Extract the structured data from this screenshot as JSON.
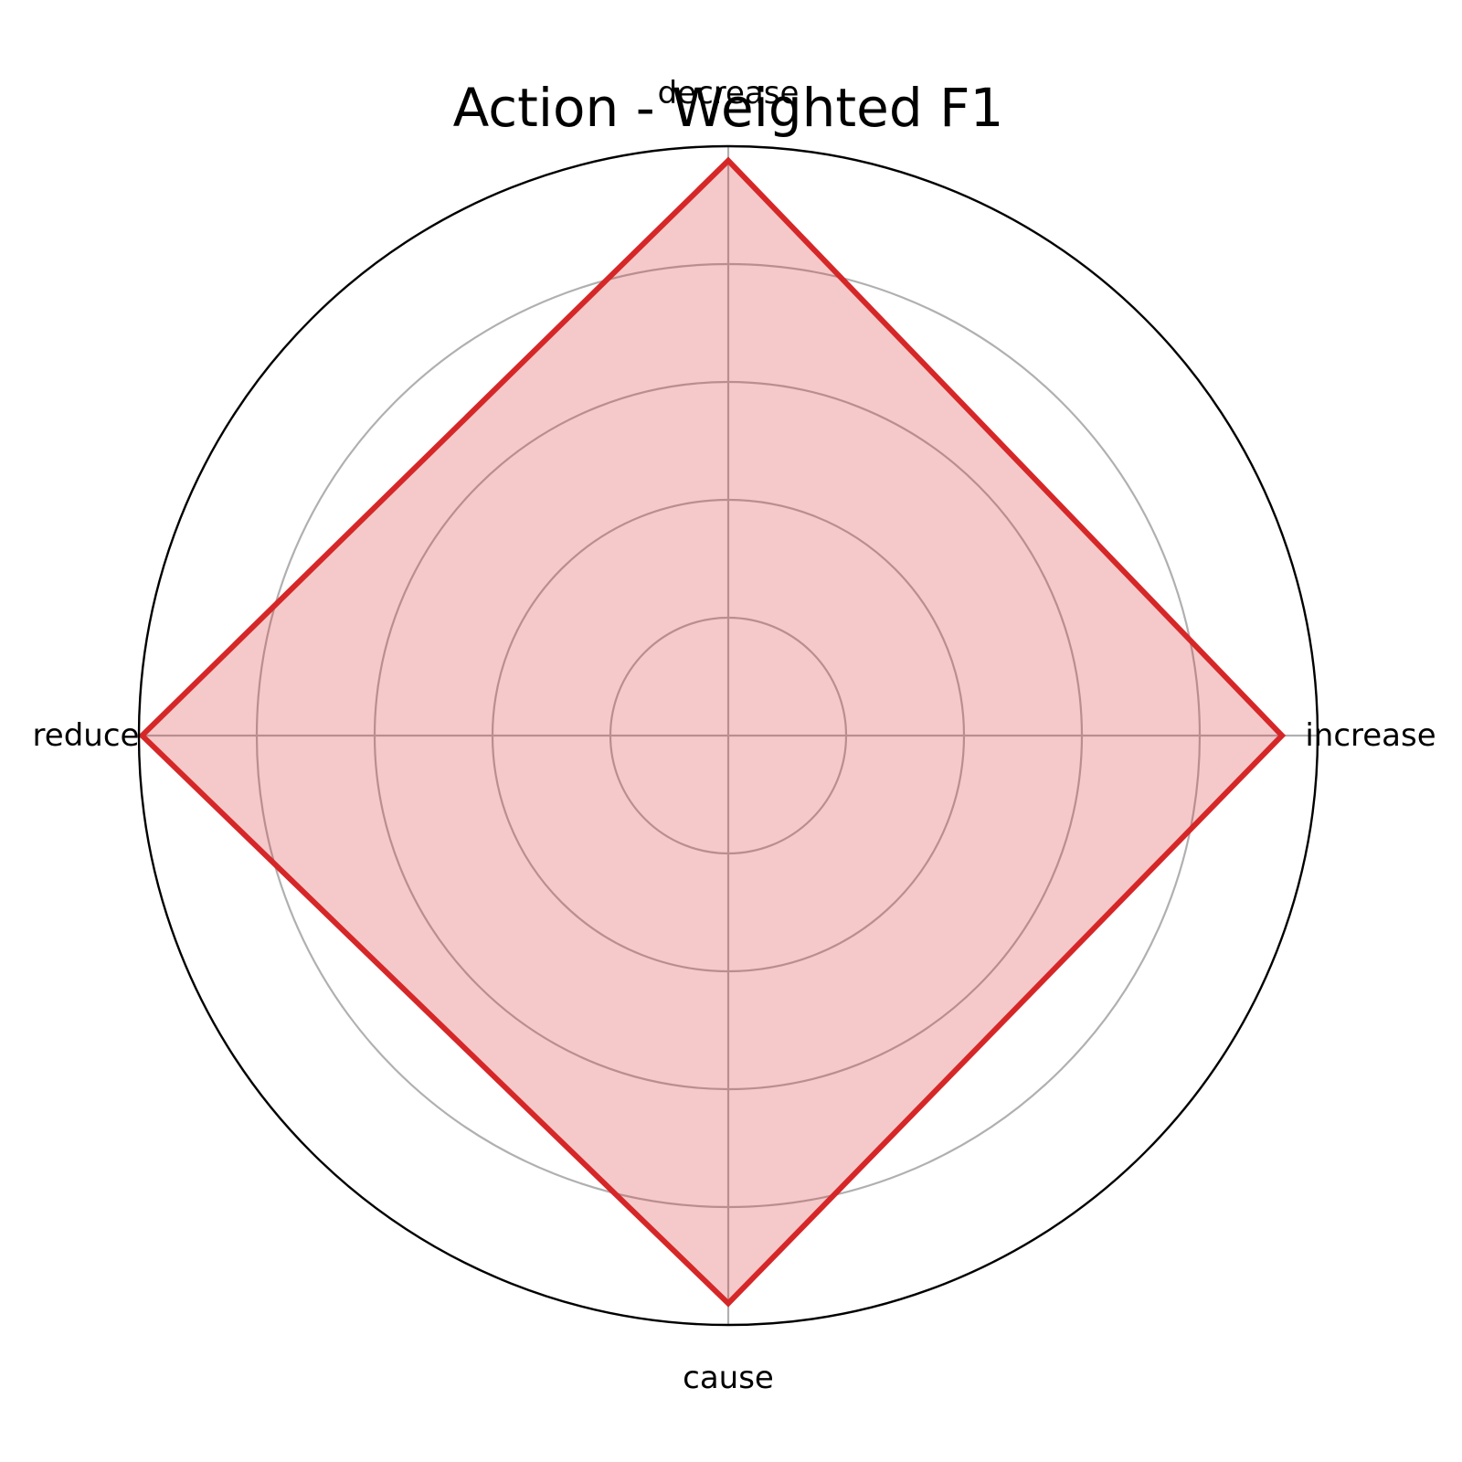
{
  "chart_data": {
    "type": "radar",
    "title": "Action - Weighted F1",
    "categories": [
      "increase",
      "decrease",
      "reduce",
      "cause"
    ],
    "series": [
      {
        "name": "Weighted F1",
        "values": [
          0.9395,
          0.9755,
          0.9946,
          0.9634
        ],
        "color": "#d62728"
      }
    ],
    "rlim": [
      0,
      1.0
    ],
    "rticks": [
      0.2,
      0.4,
      0.6,
      0.8
    ],
    "rtick_labels_visible": false,
    "grid": true
  }
}
